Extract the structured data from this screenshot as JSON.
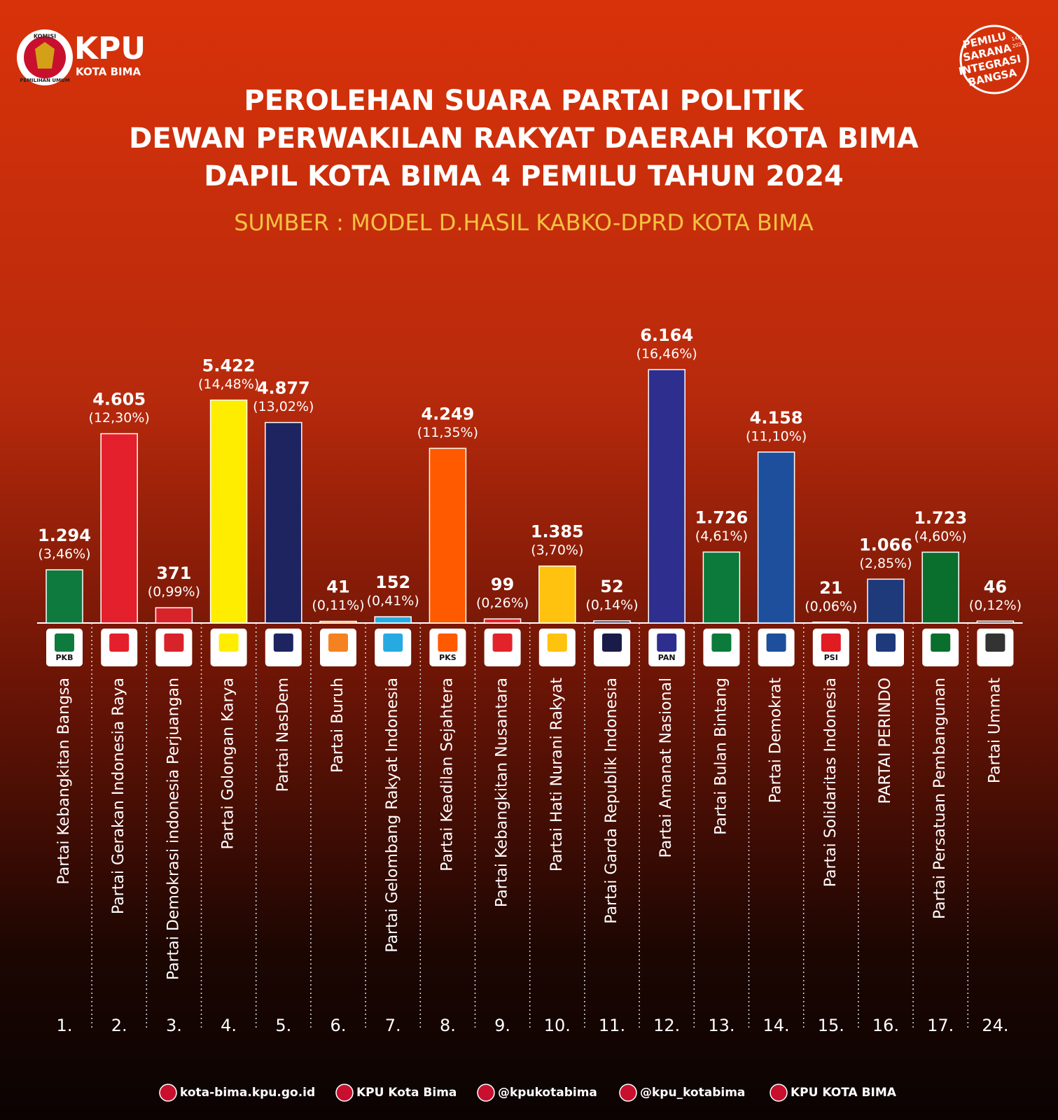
{
  "header": {
    "emblem_top": "KOMISI",
    "emblem_bottom": "PEMILIHAN UMUM",
    "brand": "KPU",
    "region": "KOTA BIMA",
    "stamp": [
      "PEMILU",
      "SARANA",
      "INTEGRASI",
      "BANGSA"
    ],
    "stamp_date": [
      "14/2",
      "2024"
    ]
  },
  "chart_data": {
    "type": "bar",
    "title": [
      "PEROLEHAN SUARA PARTAI POLITIK",
      "DEWAN PERWAKILAN RAKYAT DAERAH KOTA BIMA",
      "DAPIL KOTA BIMA 4 PEMILU TAHUN 2024"
    ],
    "subtitle": "SUMBER : MODEL D.HASIL KABKO-DPRD KOTA BIMA",
    "categories": [
      "Partai Kebangkitan Bangsa",
      "Partai Gerakan Indonesia Raya",
      "Partai Demokrasi indonesia Perjuangan",
      "Partai Golongan Karya",
      "Partai NasDem",
      "Partai Buruh",
      "Partai Gelombang Rakyat Indonesia",
      "Partai Keadilan Sejahtera",
      "Partai Kebangkitan Nusantara",
      "Partai Hati Nurani Rakyat",
      "Partai Garda Republik Indonesia",
      "Partai Amanat Nasional",
      "Partai Bulan Bintang",
      "Partai Demokrat",
      "Partai Solidaritas Indonesia",
      "PARTAI PERINDO",
      "Partai Persatuan Pembangunan",
      "Partai Ummat"
    ],
    "numbers": [
      "1.",
      "2.",
      "3.",
      "4.",
      "5.",
      "6.",
      "7.",
      "8.",
      "9.",
      "10.",
      "11.",
      "12.",
      "13.",
      "14.",
      "15.",
      "16.",
      "17.",
      "24."
    ],
    "logos": [
      "PKB",
      null,
      null,
      null,
      null,
      null,
      null,
      "PKS",
      null,
      null,
      null,
      "PAN",
      null,
      null,
      "PSI",
      null,
      null,
      null
    ],
    "values": [
      1294,
      4605,
      371,
      5422,
      4877,
      41,
      152,
      4249,
      99,
      1385,
      52,
      6164,
      1726,
      4158,
      21,
      1066,
      1723,
      46
    ],
    "value_labels": [
      "1.294",
      "4.605",
      "371",
      "5.422",
      "4.877",
      "41",
      "152",
      "4.249",
      "99",
      "1.385",
      "52",
      "6.164",
      "1.726",
      "4.158",
      "21",
      "1.066",
      "1.723",
      "46"
    ],
    "percent_labels": [
      "(3,46%)",
      "(12,30%)",
      "(0,99%)",
      "(14,48%)",
      "(13,02%)",
      "(0,11%)",
      "(0,41%)",
      "(11,35%)",
      "(0,26%)",
      "(3,70%)",
      "(0,14%)",
      "(16,46%)",
      "(4,61%)",
      "(11,10%)",
      "(0,06%)",
      "(2,85%)",
      "(4,60%)",
      "(0,12%)"
    ],
    "colors": [
      "#0f7a3e",
      "#e3202c",
      "#d9232b",
      "#ffed00",
      "#1d2460",
      "#f58220",
      "#27aae1",
      "#ff5a00",
      "#e2232a",
      "#ffc20e",
      "#1b1b4a",
      "#2e2e8f",
      "#0b7a3b",
      "#1d4f9c",
      "#e11b22",
      "#1f3a7a",
      "#0a6e2d",
      "#333333"
    ]
  },
  "footer": [
    "kota-bima.kpu.go.id",
    "KPU Kota Bima",
    "@kpukotabima",
    "@kpu_kotabima",
    "KPU KOTA BIMA"
  ]
}
